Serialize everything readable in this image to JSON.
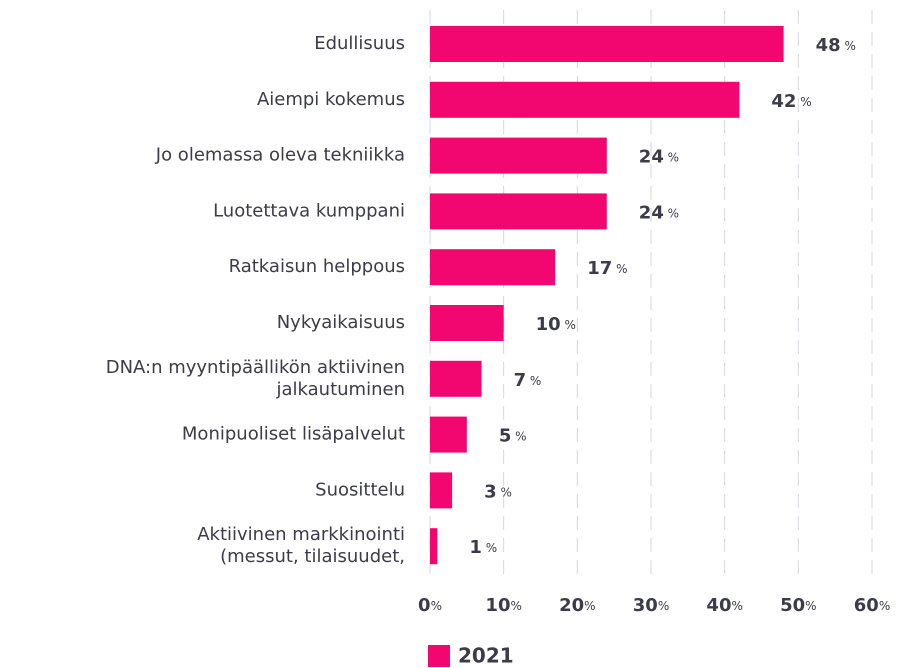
{
  "chart_data": {
    "type": "hbar",
    "categories": [
      "Edullisuus",
      "Aiempi kokemus",
      "Jo olemassa oleva tekniikka",
      "Luotettava kumppani",
      "Ratkaisun helppous",
      "Nykyaikaisuus",
      "DNA:n myyntipäällikön aktiivinen\njalkautuminen",
      "Monipuoliset lisäpalvelut",
      "Suosittelu",
      "Aktiivinen markkinointi\n(messut, tilaisuudet,"
    ],
    "series": [
      {
        "name": "2021",
        "color": "#f2066f",
        "values": [
          48,
          42,
          24,
          24,
          17,
          10,
          7,
          5,
          3,
          1
        ],
        "value_labels": [
          "48 %",
          "42 %",
          "24 %",
          "24 %",
          "17 %",
          "10 %",
          "7 %",
          "5 %",
          "3 %",
          "1 %"
        ]
      }
    ],
    "xlim": [
      0,
      60
    ],
    "xticks": [
      {
        "value": 0,
        "label": "0%"
      },
      {
        "value": 10,
        "label": "10%"
      },
      {
        "value": 20,
        "label": "20%"
      },
      {
        "value": 30,
        "label": "30%"
      },
      {
        "value": 40,
        "label": "40%"
      },
      {
        "value": 50,
        "label": "50%"
      },
      {
        "value": 60,
        "label": "60%"
      }
    ],
    "grid": true,
    "legend": "bottom"
  }
}
